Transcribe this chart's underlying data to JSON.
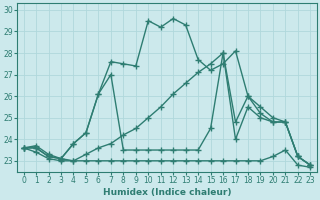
{
  "xlabel": "Humidex (Indice chaleur)",
  "x": [
    0,
    1,
    2,
    3,
    4,
    5,
    6,
    7,
    8,
    9,
    10,
    11,
    12,
    13,
    14,
    15,
    16,
    17,
    18,
    19,
    20,
    21,
    22,
    23
  ],
  "lines": [
    {
      "y": [
        23.6,
        23.7,
        23.3,
        23.1,
        23.8,
        24.3,
        26.1,
        27.6,
        27.5,
        27.4,
        29.5,
        29.2,
        29.6,
        29.3,
        27.7,
        27.2,
        27.5,
        28.1,
        26.0,
        25.5,
        25.0,
        24.8,
        23.2,
        22.8
      ],
      "color": "#2e7d72",
      "marker": "+",
      "markersize": 4,
      "linewidth": 1.0
    },
    {
      "y": [
        23.6,
        23.6,
        23.2,
        23.1,
        23.8,
        24.3,
        26.1,
        27.0,
        23.5,
        23.5,
        23.5,
        23.5,
        23.5,
        23.5,
        23.5,
        24.5,
        28.0,
        24.8,
        26.0,
        25.2,
        24.8,
        24.8,
        23.2,
        22.8
      ],
      "color": "#2e7d72",
      "marker": "+",
      "markersize": 4,
      "linewidth": 1.0
    },
    {
      "y": [
        23.6,
        23.6,
        23.2,
        23.1,
        23.0,
        23.3,
        23.6,
        23.8,
        24.2,
        24.5,
        25.0,
        25.5,
        26.1,
        26.6,
        27.1,
        27.5,
        28.0,
        24.0,
        25.5,
        25.0,
        24.8,
        24.8,
        23.2,
        22.8
      ],
      "color": "#2e7d72",
      "marker": "+",
      "markersize": 4,
      "linewidth": 1.0
    },
    {
      "y": [
        23.6,
        23.4,
        23.1,
        23.0,
        23.0,
        23.0,
        23.0,
        23.0,
        23.0,
        23.0,
        23.0,
        23.0,
        23.0,
        23.0,
        23.0,
        23.0,
        23.0,
        23.0,
        23.0,
        23.0,
        23.2,
        23.5,
        22.8,
        22.7
      ],
      "color": "#2e7d72",
      "marker": "+",
      "markersize": 4,
      "linewidth": 1.0
    }
  ],
  "ylim": [
    22.5,
    30.3
  ],
  "yticks": [
    23,
    24,
    25,
    26,
    27,
    28,
    29,
    30
  ],
  "xlim": [
    -0.5,
    23.5
  ],
  "xticks": [
    0,
    1,
    2,
    3,
    4,
    5,
    6,
    7,
    8,
    9,
    10,
    11,
    12,
    13,
    14,
    15,
    16,
    17,
    18,
    19,
    20,
    21,
    22,
    23
  ],
  "bg_color": "#cce9ec",
  "grid_color": "#b0d8dc",
  "line_color": "#2e7d72",
  "tick_fontsize": 5.5,
  "label_fontsize": 6.5
}
